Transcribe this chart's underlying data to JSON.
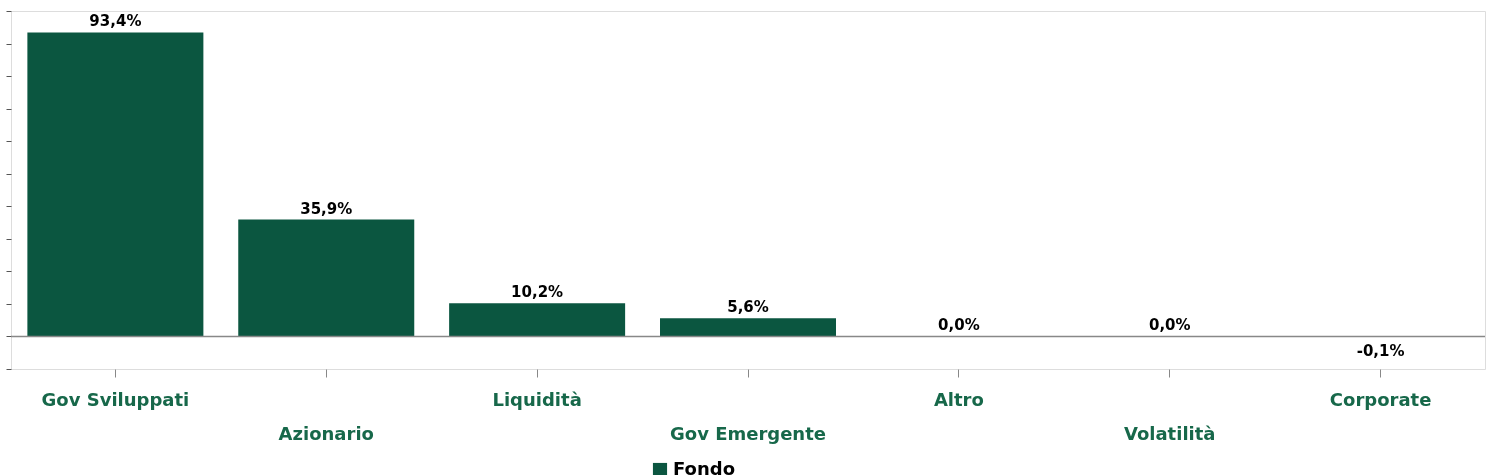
{
  "chart_data": {
    "type": "bar",
    "categories": [
      "Gov Sviluppati",
      "Azionario",
      "Liquidità",
      "Gov Emergente",
      "Altro",
      "Volatilità",
      "Corporate"
    ],
    "series": [
      {
        "name": "Fondo",
        "color": "#0b5640",
        "values": [
          93.4,
          35.9,
          10.2,
          5.6,
          0.0,
          0.0,
          -0.1
        ],
        "value_labels": [
          "93,4%",
          "35,9%",
          "10,2%",
          "5,6%",
          "0,0%",
          "0,0%",
          "-0,1%"
        ]
      }
    ],
    "ylim": [
      -10,
      100
    ],
    "yticks": [
      {
        "value": -10,
        "label": null
      },
      {
        "value": 0,
        "label": null
      },
      {
        "value": 10,
        "label": null
      },
      {
        "value": 20,
        "label": null
      },
      {
        "value": 30,
        "label": null
      },
      {
        "value": 40,
        "label": null
      },
      {
        "value": 50,
        "label": null
      },
      {
        "value": 60,
        "label": null
      },
      {
        "value": 70,
        "label": null
      },
      {
        "value": 80,
        "label": null
      },
      {
        "value": 90,
        "label": null
      },
      {
        "value": 100,
        "label": null
      }
    ],
    "tick_labels": "x",
    "ref_lines": [
      {
        "axis": "y",
        "value": 0,
        "label": null,
        "color": "#888888"
      }
    ],
    "legend": "bottom",
    "grid": false
  }
}
